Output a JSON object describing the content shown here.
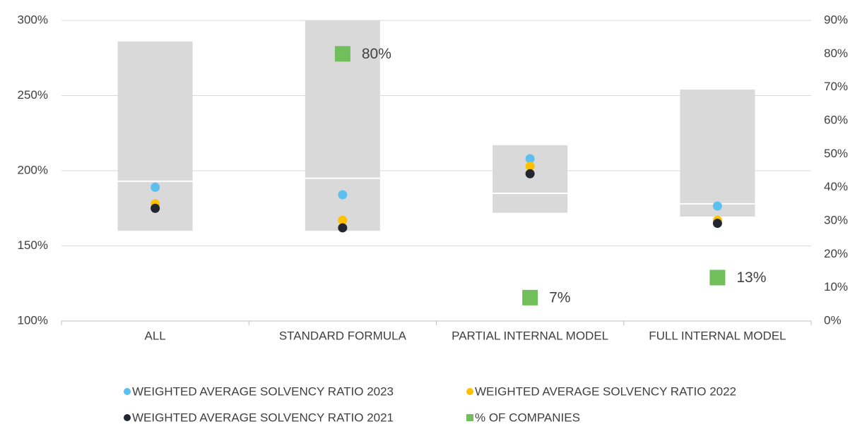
{
  "chart_data": {
    "type": "range-dot",
    "categories": [
      "ALL",
      "STANDARD FORMULA",
      "PARTIAL INTERNAL MODEL",
      "FULL INTERNAL MODEL"
    ],
    "ranges": {
      "color": "#d9d9d9",
      "low": [
        160,
        160,
        172,
        169.5
      ],
      "high": [
        286,
        300,
        217,
        254
      ],
      "median": [
        193,
        195,
        185,
        178
      ]
    },
    "series": [
      {
        "name": "WEIGHTED AVERAGE SOLVENCY RATIO 2023",
        "color": "#5bc0f0",
        "values": [
          189,
          184,
          208,
          176.5
        ]
      },
      {
        "name": "WEIGHTED AVERAGE SOLVENCY RATIO 2022",
        "color": "#ffc000",
        "values": [
          178,
          167,
          203,
          167
        ]
      },
      {
        "name": "WEIGHTED AVERAGE SOLVENCY RATIO 2021",
        "color": "#22262e",
        "values": [
          175,
          162,
          198,
          165
        ]
      },
      {
        "name": "% OF COMPANIES",
        "color": "#70bf5a",
        "axis": "y2",
        "marker": "square",
        "values": [
          null,
          80,
          7,
          13
        ],
        "value_labels": [
          null,
          "80%",
          "7%",
          "13%"
        ]
      }
    ],
    "ylim": [
      100,
      300
    ],
    "yticks": [
      {
        "value": 100,
        "label": "100%"
      },
      {
        "value": 150,
        "label": "150%"
      },
      {
        "value": 200,
        "label": "200%"
      },
      {
        "value": 250,
        "label": "250%"
      },
      {
        "value": 300,
        "label": "300%"
      }
    ],
    "y2lim": [
      0,
      90
    ],
    "y2ticks": [
      {
        "value": 0,
        "label": "0%"
      },
      {
        "value": 10,
        "label": "10%"
      },
      {
        "value": 20,
        "label": "20%"
      },
      {
        "value": 30,
        "label": "30%"
      },
      {
        "value": 40,
        "label": "40%"
      },
      {
        "value": 50,
        "label": "50%"
      },
      {
        "value": 60,
        "label": "60%"
      },
      {
        "value": 70,
        "label": "70%"
      },
      {
        "value": 80,
        "label": "80%"
      },
      {
        "value": 90,
        "label": "90%"
      }
    ],
    "grid": true
  }
}
